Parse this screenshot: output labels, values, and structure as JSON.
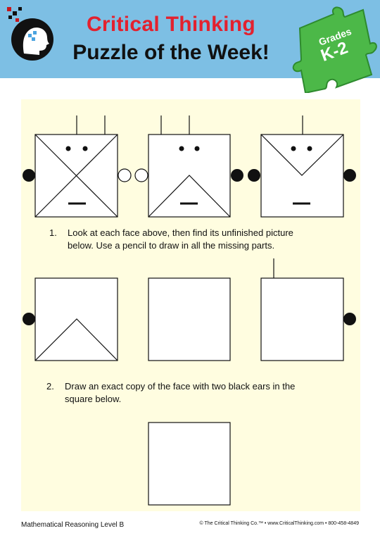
{
  "header": {
    "title_line1": "Critical Thinking",
    "title_line2": "Puzzle of the Week!",
    "badge_line1": "Grades",
    "badge_line2": "K-2",
    "brand_red": "#e3212e",
    "header_blue": "#7dbfe4",
    "badge_green": "#4cb848"
  },
  "questions": [
    {
      "number": "1.",
      "line1": "Look at each face above, then find its unfinished picture",
      "line2": "below.  Use a pencil to draw in all the missing parts."
    },
    {
      "number": "2.",
      "line1": "Draw an exact copy of the face with two black ears in the",
      "line2": "square below."
    }
  ],
  "footer": {
    "left": "Mathematical Reasoning Level B",
    "right": "© The Critical Thinking Co.™ • www.CriticalThinking.com • 800-458-4849"
  }
}
